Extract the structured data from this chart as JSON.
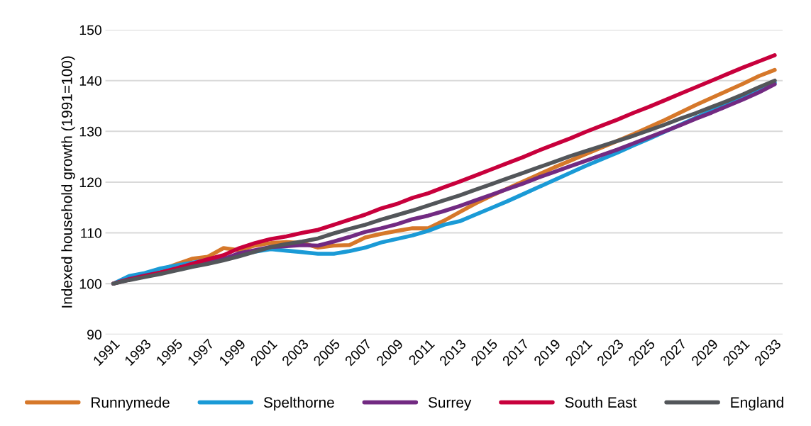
{
  "chart_data": {
    "type": "line",
    "ylabel": "Indexed household growth (1991=100)",
    "categories": [
      "1991",
      null,
      "1993",
      null,
      "1995",
      null,
      "1997",
      null,
      "1999",
      null,
      "2001",
      null,
      "2003",
      null,
      "2005",
      null,
      "2007",
      null,
      "2009",
      null,
      "2011",
      null,
      "2013",
      null,
      "2015",
      null,
      "2017",
      null,
      "2019",
      null,
      "2021",
      null,
      "2023",
      null,
      "2025",
      null,
      "2027",
      null,
      "2029",
      null,
      "2031",
      null,
      "2033"
    ],
    "series": [
      {
        "name": "Runnymede",
        "color": "#d6782a",
        "values": [
          null,
          null,
          101.9,
          102.7,
          103.8,
          104.9,
          105.3,
          107,
          106.6,
          107.5,
          108,
          108.2,
          108,
          107.1,
          107.5,
          107.6,
          109.1,
          109.8,
          110.4,
          110.9,
          110.9,
          112.4,
          114.1,
          115.8,
          117.3,
          118.7,
          120.1,
          121.5,
          122.9,
          124.2,
          125.5,
          126.8,
          128.1,
          129.4,
          130.8,
          132.2,
          133.7,
          135.2,
          136.6,
          138,
          139.4,
          140.9,
          142.1
        ]
      },
      {
        "name": "Spelthorne",
        "color": "#1a9ad6",
        "values": [
          100,
          101.5,
          102.1,
          103,
          103.6,
          104.1,
          104.7,
          105,
          105.7,
          106.3,
          106.8,
          106.5,
          106.2,
          105.9,
          105.9,
          106.4,
          107.1,
          108.1,
          108.8,
          109.5,
          110.4,
          111.6,
          112.3,
          113.6,
          114.9,
          116.2,
          117.6,
          119,
          120.4,
          121.8,
          123.2,
          124.5,
          125.8,
          127.2,
          128.5,
          129.9,
          131.3,
          132.7,
          134.1,
          135.5,
          136.9,
          138.3,
          139.6
        ]
      },
      {
        "name": "Surrey",
        "color": "#722a82",
        "values": [
          100,
          100.9,
          101.6,
          102.2,
          102.9,
          103.6,
          104.2,
          104.8,
          106,
          106.6,
          107.2,
          107.4,
          107.6,
          107.5,
          108.3,
          109.2,
          110.2,
          110.9,
          111.7,
          112.7,
          113.4,
          114.3,
          115.3,
          116.4,
          117.5,
          118.6,
          119.7,
          120.9,
          122,
          123.1,
          124.2,
          125.3,
          126.4,
          127.6,
          128.8,
          130,
          131.2,
          132.5,
          133.7,
          135,
          136.3,
          137.7,
          139.3
        ]
      },
      {
        "name": "South East",
        "color": "#c8003c",
        "values": [
          100,
          100.8,
          101.5,
          102.2,
          103,
          103.9,
          104.8,
          105.6,
          107,
          108,
          108.8,
          109.3,
          110,
          110.6,
          111.6,
          112.6,
          113.6,
          114.8,
          115.7,
          116.9,
          117.8,
          119,
          120.1,
          121.3,
          122.5,
          123.7,
          124.9,
          126.2,
          127.4,
          128.6,
          129.9,
          131.1,
          132.3,
          133.6,
          134.8,
          136.1,
          137.4,
          138.7,
          140,
          141.3,
          142.6,
          143.8,
          145
        ]
      },
      {
        "name": "England",
        "color": "#53565a",
        "values": [
          100,
          100.7,
          101.3,
          101.9,
          102.6,
          103.3,
          103.9,
          104.6,
          105.4,
          106.3,
          107.2,
          107.8,
          108.3,
          108.9,
          109.9,
          110.8,
          111.6,
          112.6,
          113.5,
          114.4,
          115.4,
          116.4,
          117.4,
          118.5,
          119.6,
          120.7,
          121.8,
          122.9,
          124,
          125.1,
          126.1,
          127.1,
          128.1,
          129.1,
          130.2,
          131.3,
          132.5,
          133.6,
          134.8,
          136,
          137.3,
          138.7,
          140
        ]
      }
    ],
    "ylim": [
      90,
      150
    ],
    "yticks": [
      90,
      100,
      110,
      120,
      130,
      140,
      150
    ],
    "grid": "y",
    "legend": "bottom",
    "marker": "none",
    "line_style": "solid"
  }
}
